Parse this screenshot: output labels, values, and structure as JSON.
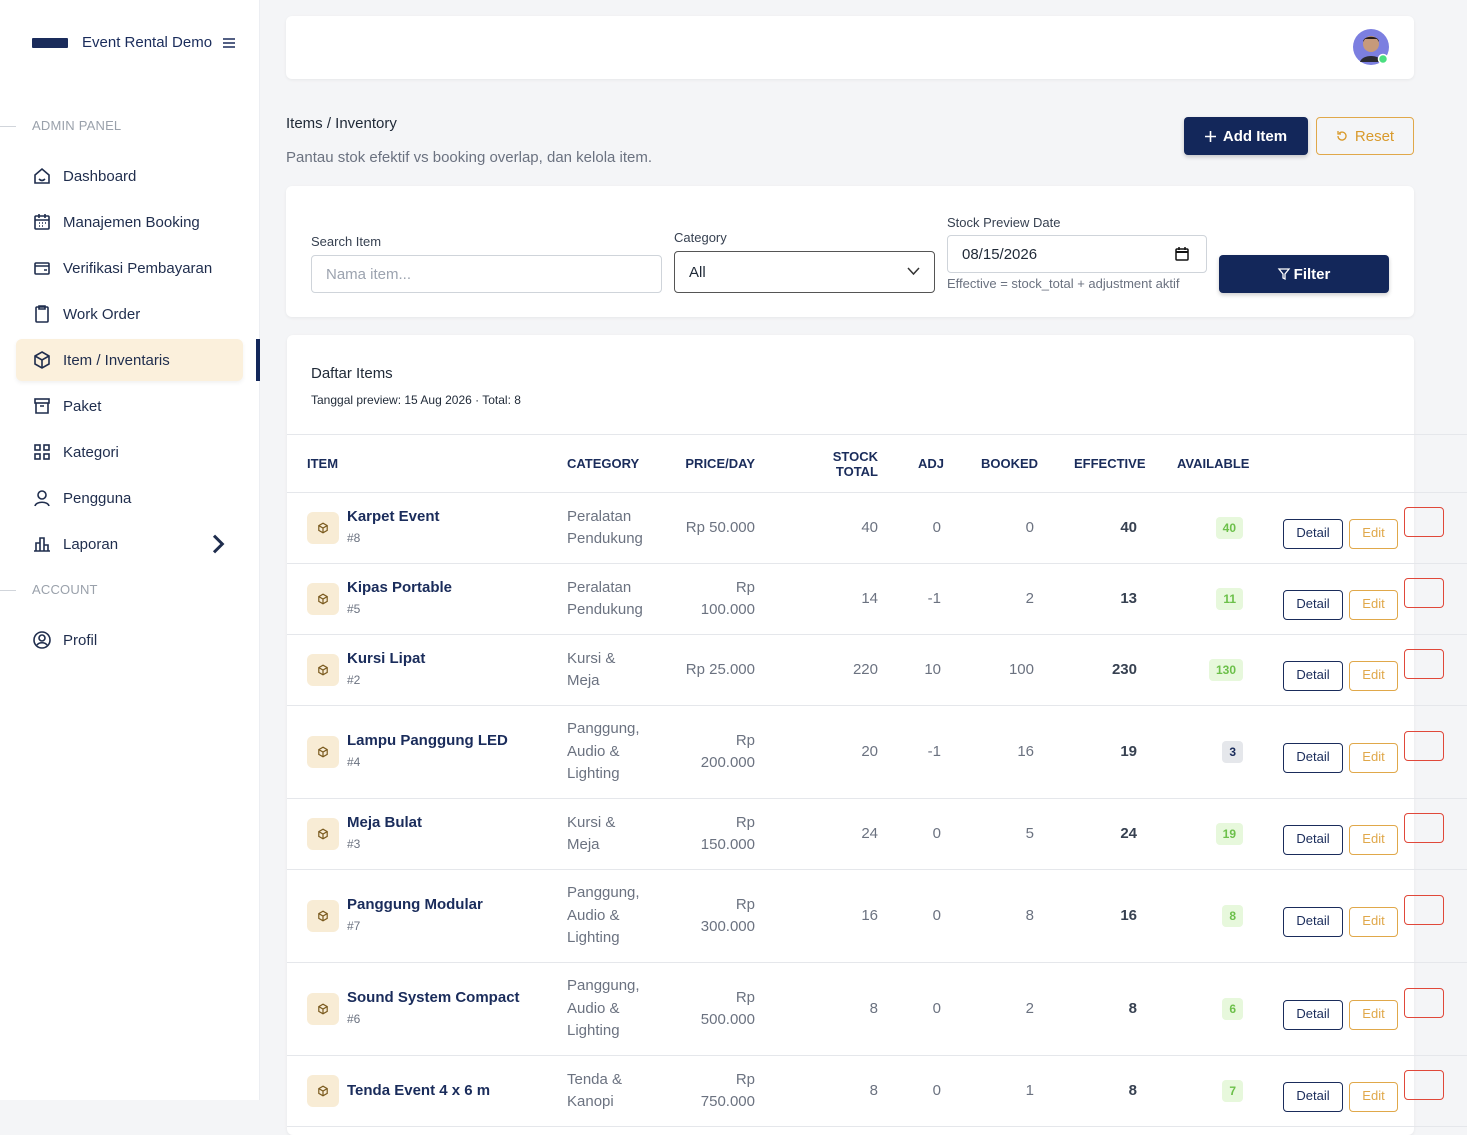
{
  "brand": {
    "name": "Event Rental Demo"
  },
  "sidebar": {
    "sections": [
      {
        "title": "ADMIN PANEL",
        "items": [
          "Dashboard",
          "Manajemen Booking",
          "Verifikasi Pembayaran",
          "Work Order",
          "Item / Inventaris",
          "Paket",
          "Kategori",
          "Pengguna",
          "Laporan"
        ]
      },
      {
        "title": "ACCOUNT",
        "items": [
          "Profil"
        ]
      }
    ]
  },
  "header": {
    "breadcrumb": "Items / Inventory",
    "subtitle": "Pantau stok efektif vs booking overlap, dan kelola item.",
    "buttons": [
      "Add Item",
      "Reset"
    ]
  },
  "filter": {
    "search_label": "Search Item",
    "search_placeholder": "Nama item...",
    "category_label": "Category",
    "category_value": "All",
    "date_label": "Stock Preview Date",
    "date_value": "08/15/2026",
    "date_hint": "Effective = stock_total + adjustment aktif",
    "button": "Filter"
  },
  "list": {
    "title": "Daftar Items",
    "meta": "Tanggal preview: 15 Aug 2026 · Total: 8"
  },
  "table": {
    "columns": [
      "ITEM",
      "CATEGORY",
      "PRICE/DAY",
      "STOCK TOTAL",
      "ADJ",
      "BOOKED",
      "EFFECTIVE",
      "AVAILABLE"
    ],
    "actions": [
      "Detail",
      "Edit"
    ],
    "rows": [
      {
        "name": "Karpet Event",
        "id": "#8",
        "category": "Peralatan Pendukung",
        "price": "Rp 50.000",
        "stock_total": 40,
        "adj": 0,
        "booked": 0,
        "effective": 40,
        "available": 40
      },
      {
        "name": "Kipas Portable",
        "id": "#5",
        "category": "Peralatan Pendukung",
        "price": "Rp 100.000",
        "stock_total": 14,
        "adj": -1,
        "booked": 2,
        "effective": 13,
        "available": 11
      },
      {
        "name": "Kursi Lipat",
        "id": "#2",
        "category": "Kursi & Meja",
        "price": "Rp 25.000",
        "stock_total": 220,
        "adj": 10,
        "booked": 100,
        "effective": 230,
        "available": 130
      },
      {
        "name": "Lampu Panggung LED",
        "id": "#4",
        "category": "Panggung, Audio & Lighting",
        "price": "Rp 200.000",
        "stock_total": 20,
        "adj": -1,
        "booked": 16,
        "effective": 19,
        "available": 3
      },
      {
        "name": "Meja Bulat",
        "id": "#3",
        "category": "Kursi & Meja",
        "price": "Rp 150.000",
        "stock_total": 24,
        "adj": 0,
        "booked": 5,
        "effective": 24,
        "available": 19
      },
      {
        "name": "Panggung Modular",
        "id": "#7",
        "category": "Panggung, Audio & Lighting",
        "price": "Rp 300.000",
        "stock_total": 16,
        "adj": 0,
        "booked": 8,
        "effective": 16,
        "available": 8
      },
      {
        "name": "Sound System Compact",
        "id": "#6",
        "category": "Panggung, Audio & Lighting",
        "price": "Rp 500.000",
        "stock_total": 8,
        "adj": 0,
        "booked": 2,
        "effective": 8,
        "available": 6
      },
      {
        "name": "Tenda Event 4 x 6 m",
        "category": "Tenda & Kanopi",
        "price": "Rp 750.000",
        "stock_total": 8,
        "adj": 0,
        "booked": 1,
        "effective": 8,
        "available": 7
      }
    ]
  }
}
